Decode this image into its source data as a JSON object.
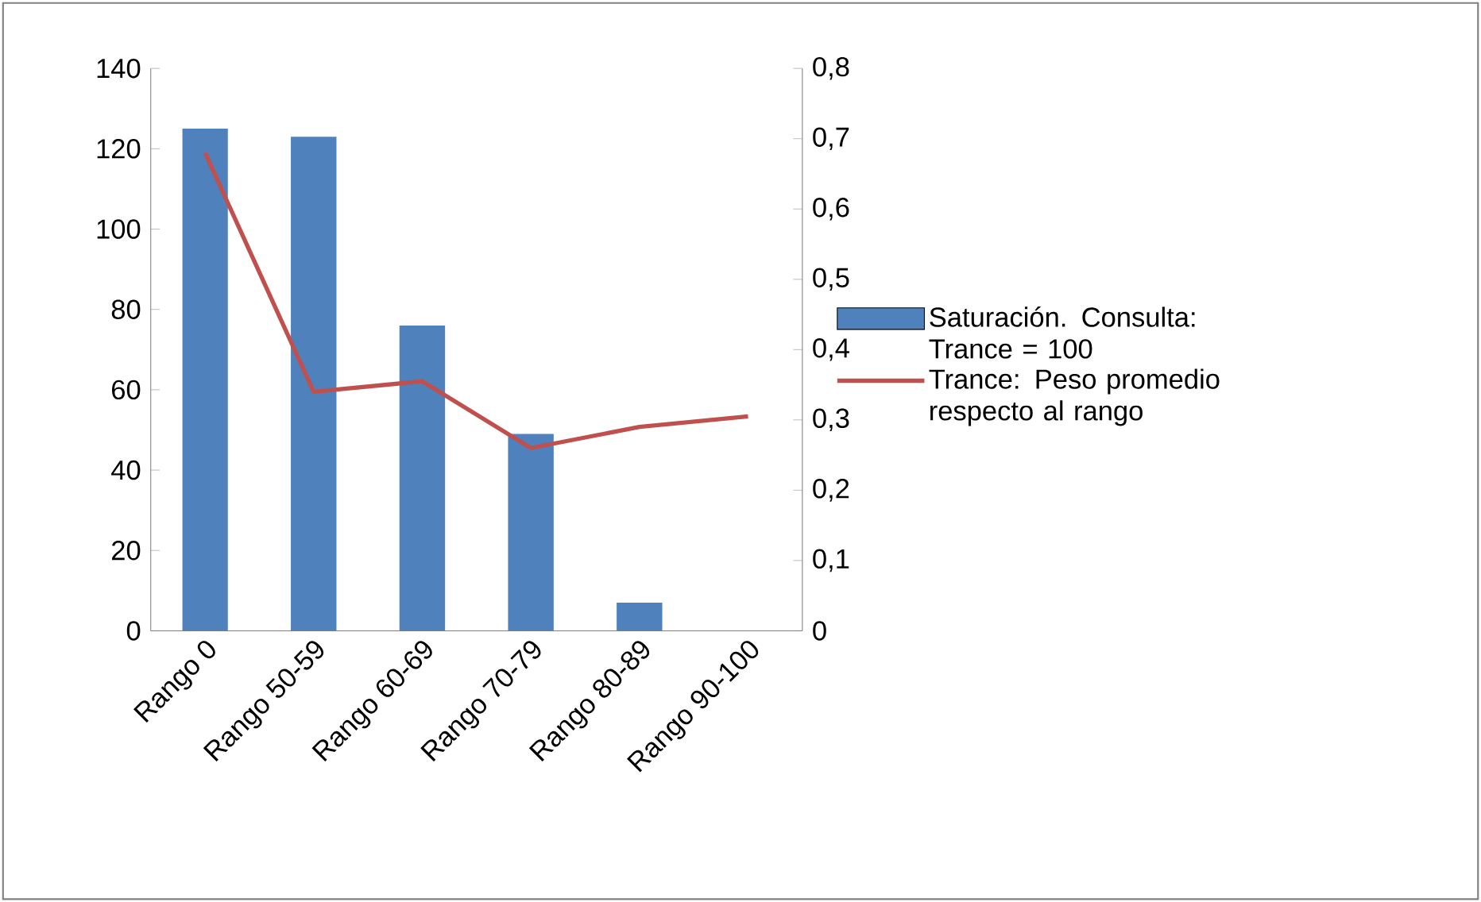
{
  "chart_data": {
    "type": "bar",
    "categories": [
      "Rango 0",
      "Rango 50-59",
      "Rango 60-69",
      "Rango 70-79",
      "Rango 80-89",
      "Rango 90-100"
    ],
    "series": [
      {
        "name": "Saturación. Consulta: Trance = 100",
        "color": "#4f81bd",
        "values": [
          125,
          123,
          76,
          49,
          7,
          0
        ]
      },
      {
        "name": "Trance: Peso promedio respecto al rango",
        "type": "line",
        "axis": "y2",
        "color": "#c0504d",
        "values": [
          0.68,
          0.34,
          0.355,
          0.26,
          0.29,
          0.305
        ]
      }
    ],
    "ylim": [
      0,
      140
    ],
    "yticks": [
      0,
      20,
      40,
      60,
      80,
      100,
      120,
      140
    ],
    "y2lim": [
      0,
      0.8
    ],
    "y2ticks": [
      {
        "value": 0,
        "label": "0"
      },
      {
        "value": 0.1,
        "label": "0,1"
      },
      {
        "value": 0.2,
        "label": "0,2"
      },
      {
        "value": 0.3,
        "label": "0,3"
      },
      {
        "value": 0.4,
        "label": "0,4"
      },
      {
        "value": 0.5,
        "label": "0,5"
      },
      {
        "value": 0.6,
        "label": "0,6"
      },
      {
        "value": 0.7,
        "label": "0,7"
      },
      {
        "value": 0.8,
        "label": "0,8"
      }
    ],
    "legend": "right",
    "grid": false,
    "marker": "none"
  }
}
